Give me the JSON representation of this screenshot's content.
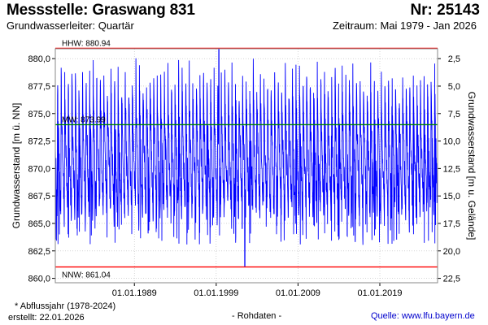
{
  "header": {
    "title": "Messstelle: Graswang 831",
    "number": "Nr: 25143",
    "aquifer": "Grundwasserleiter: Quartär",
    "period": "Zeitraum: Mai 1979 - Jan 2026"
  },
  "footer": {
    "note": "* Abflussjahr (1978-2024)",
    "created": "erstellt:  22.01.2026",
    "center": "- Rohdaten -",
    "source": "Quelle:  www.lfu.bayern.de"
  },
  "colors": {
    "series": "#0000ff",
    "hhw": "#ff0000",
    "nnw": "#ff0000",
    "mw": "#008000",
    "grid": "#bbbbbb",
    "plot_border": "#888888"
  },
  "chart_data": {
    "type": "line",
    "ylabel": "Grundwasserstand [m ü. NN]",
    "ylabel_right": "Grundwasserstand [m u. Gelände]",
    "ylim": [
      859.6,
      880.9
    ],
    "xlim": [
      "1979-05-01",
      "2026-01-22"
    ],
    "y_ticks": [
      "880,0",
      "877,5",
      "875,0",
      "872,5",
      "870,0",
      "867,5",
      "865,0",
      "862,5",
      "860,0"
    ],
    "y_ticks_right": [
      "2,5",
      "5,0",
      "7,5",
      "10,0",
      "12,5",
      "15,0",
      "17,5",
      "20,0",
      "22,5"
    ],
    "x_ticks": [
      "01.01.1989",
      "01.01.1999",
      "01.01.2009",
      "01.01.2019"
    ],
    "reference_lines": [
      {
        "label": "HHW: 880.94",
        "value": 880.94
      },
      {
        "label": "MW: 873.99",
        "value": 873.99
      },
      {
        "label": "NNW: 861.04",
        "value": 861.04
      }
    ],
    "ground_level_m_nn": 882.5,
    "grid": true,
    "series": [
      {
        "min_date": "2002-07",
        "max_date": "1999-05",
        "typical_high": 879.0,
        "typical_low": 866.0,
        "min_value": 861.04,
        "max_value": 880.94
      }
    ]
  }
}
